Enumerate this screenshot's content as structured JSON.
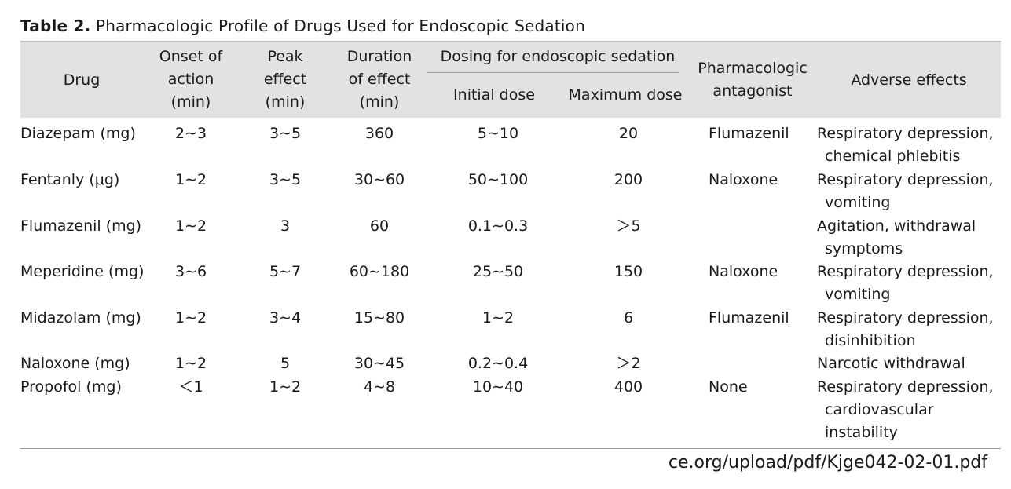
{
  "caption": {
    "label": "Table 2.",
    "title": "Pharmacologic Profile of Drugs Used for Endoscopic Sedation"
  },
  "headers": {
    "drug": "Drug",
    "onset": [
      "Onset of",
      "action",
      "(min)"
    ],
    "peak": [
      "Peak",
      "effect",
      "(min)"
    ],
    "duration": [
      "Duration",
      "of effect",
      "(min)"
    ],
    "dosing_group": "Dosing for endoscopic sedation",
    "initial": "Initial dose",
    "maximum": "Maximum dose",
    "antagonist": [
      "Pharmacologic",
      "antagonist"
    ],
    "adverse": "Adverse effects"
  },
  "rows": [
    {
      "drug": "Diazepam (mg)",
      "onset": "2∼3",
      "peak": "3∼5",
      "duration": "360",
      "initial": "5∼10",
      "maximum": "20",
      "antagonist": "Flumazenil",
      "adverse": [
        "Respiratory depression,",
        "chemical phlebitis"
      ]
    },
    {
      "drug": "Fentanly (μg)",
      "onset": "1∼2",
      "peak": "3∼5",
      "duration": "30∼60",
      "initial": "50∼100",
      "maximum": "200",
      "antagonist": "Naloxone",
      "adverse": [
        "Respiratory depression,",
        "vomiting"
      ]
    },
    {
      "drug": "Flumazenil (mg)",
      "onset": "1∼2",
      "peak": "3",
      "duration": "60",
      "initial": "0.1∼0.3",
      "maximum": "＞5",
      "antagonist": "",
      "adverse": [
        "Agitation, withdrawal",
        "symptoms"
      ]
    },
    {
      "drug": "Meperidine (mg)",
      "onset": "3∼6",
      "peak": "5∼7",
      "duration": "60∼180",
      "initial": "25∼50",
      "maximum": "150",
      "antagonist": "Naloxone",
      "adverse": [
        "Respiratory depression,",
        "vomiting"
      ]
    },
    {
      "drug": "Midazolam (mg)",
      "onset": "1∼2",
      "peak": "3∼4",
      "duration": "15∼80",
      "initial": "1∼2",
      "maximum": "6",
      "antagonist": "Flumazenil",
      "adverse": [
        "Respiratory depression,",
        "disinhibition"
      ]
    },
    {
      "drug": "Naloxone (mg)",
      "onset": "1∼2",
      "peak": "5",
      "duration": "30∼45",
      "initial": "0.2∼0.4",
      "maximum": "＞2",
      "antagonist": "",
      "adverse": [
        "Narcotic withdrawal"
      ]
    },
    {
      "drug": "Propofol (mg)",
      "onset": "＜1",
      "peak": "1∼2",
      "duration": "4∼8",
      "initial": "10∼40",
      "maximum": "400",
      "antagonist": "None",
      "adverse": [
        "Respiratory depression,",
        "cardiovascular",
        "instability"
      ]
    }
  ],
  "footer_url": "ce.org/upload/pdf/Kjge042-02-01.pdf"
}
